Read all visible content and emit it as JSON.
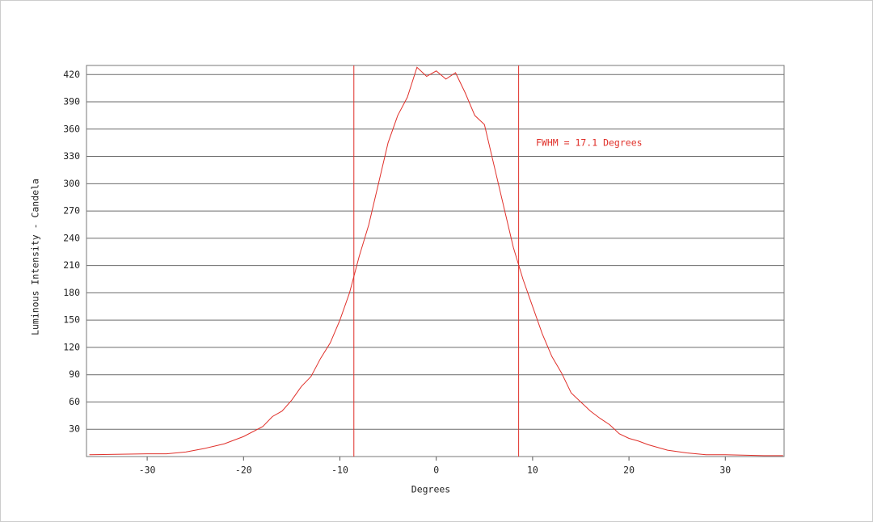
{
  "chart_data": {
    "type": "line",
    "xlabel": "Degrees",
    "ylabel": "Luminous Intensity - Candela",
    "annotation": "FWHM = 17.1 Degrees",
    "x": [
      -36,
      -30,
      -28,
      -26,
      -24,
      -22,
      -20,
      -18,
      -17,
      -16,
      -15,
      -14,
      -13,
      -12,
      -11,
      -10,
      -9,
      -8,
      -7,
      -6,
      -5,
      -4,
      -3,
      -2,
      -1,
      0,
      1,
      2,
      3,
      4,
      5,
      6,
      7,
      8,
      9,
      10,
      11,
      12,
      13,
      14,
      15,
      16,
      17,
      18,
      19,
      20,
      21,
      22,
      23,
      24,
      26,
      28,
      30,
      34,
      36
    ],
    "values": [
      2,
      3,
      3,
      5,
      9,
      14,
      22,
      33,
      44,
      50,
      62,
      77,
      88,
      108,
      125,
      150,
      180,
      220,
      255,
      300,
      345,
      375,
      395,
      428,
      418,
      424,
      415,
      422,
      400,
      375,
      365,
      320,
      275,
      230,
      195,
      165,
      135,
      110,
      92,
      70,
      60,
      50,
      42,
      35,
      25,
      20,
      17,
      13,
      10,
      7,
      4,
      2,
      2,
      1,
      1
    ],
    "color": "#e0302a",
    "vlines": [
      -8.55,
      8.55
    ],
    "xlim": [
      -36.3,
      36.1
    ],
    "xticks": [
      -30,
      -20,
      -10,
      0,
      10,
      20,
      30
    ],
    "ylim": [
      0,
      430
    ],
    "yticks": [
      30,
      60,
      90,
      120,
      150,
      180,
      210,
      240,
      270,
      300,
      330,
      360,
      390,
      420
    ],
    "grid": true
  }
}
